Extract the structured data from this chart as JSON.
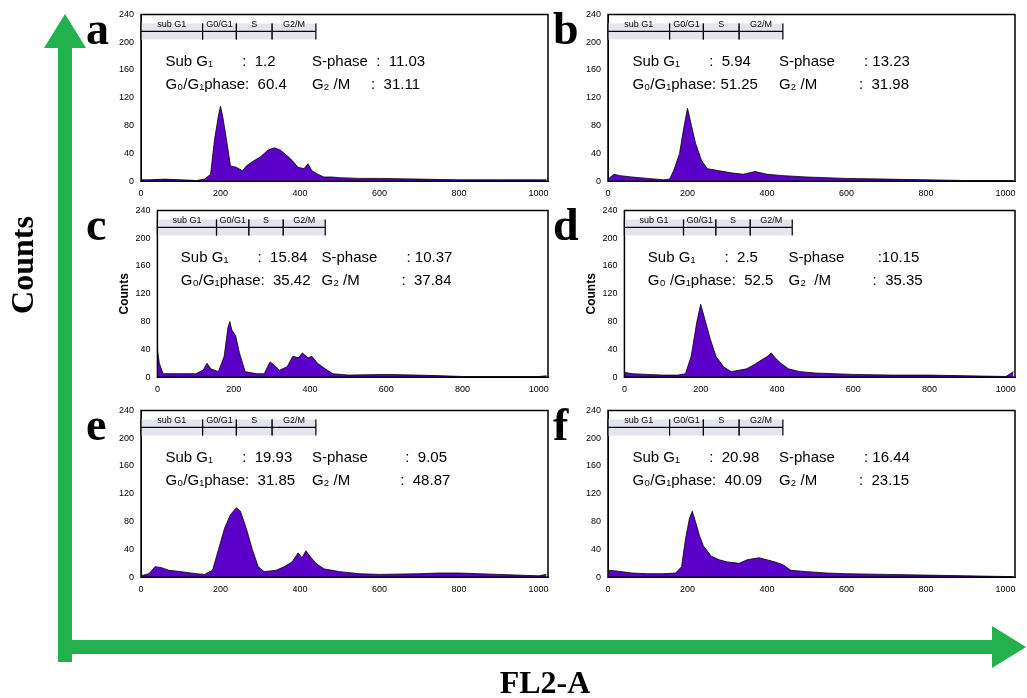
{
  "chart_data": [
    {
      "type": "area",
      "title": "a",
      "xlim": [
        0,
        1024
      ],
      "ylim": [
        0,
        240
      ],
      "xticks": [
        0,
        200,
        400,
        600,
        800,
        1000
      ],
      "yticks": [
        0,
        40,
        80,
        120,
        160,
        200,
        240
      ],
      "bands": [
        {
          "axis": "x",
          "from": 0,
          "to": 155,
          "label": "sub G1"
        },
        {
          "axis": "x",
          "from": 155,
          "to": 240,
          "label": "G0/G1"
        },
        {
          "axis": "x",
          "from": 240,
          "to": 330,
          "label": "S"
        },
        {
          "axis": "x",
          "from": 330,
          "to": 440,
          "label": "G2/M"
        }
      ],
      "annotations": [
        "Sub G₁       :  1.2",
        "S-phase  :  11.03",
        "G₀/G₁phase:  60.4",
        "G₂ /M     :  31.11"
      ],
      "series": [
        {
          "color": "#5a00c8",
          "x": [
            0,
            20,
            60,
            100,
            140,
            160,
            175,
            185,
            195,
            200,
            205,
            215,
            225,
            240,
            255,
            265,
            280,
            300,
            320,
            335,
            350,
            365,
            380,
            395,
            410,
            420,
            430,
            445,
            460,
            480,
            500,
            550,
            600,
            700,
            800,
            900,
            1000,
            1020
          ],
          "values": [
            2,
            2,
            3,
            2,
            1,
            3,
            10,
            60,
            95,
            108,
            95,
            60,
            22,
            20,
            15,
            22,
            28,
            35,
            45,
            48,
            45,
            38,
            30,
            20,
            18,
            25,
            15,
            10,
            6,
            6,
            5,
            4,
            4,
            3,
            2,
            2,
            2,
            2
          ]
        }
      ]
    },
    {
      "type": "area",
      "title": "b",
      "xlim": [
        0,
        1024
      ],
      "ylim": [
        0,
        240
      ],
      "xticks": [
        0,
        200,
        400,
        600,
        800,
        1000
      ],
      "yticks": [
        0,
        40,
        80,
        120,
        160,
        200,
        240
      ],
      "bands": [
        {
          "axis": "x",
          "from": 0,
          "to": 155,
          "label": "sub G1"
        },
        {
          "axis": "x",
          "from": 155,
          "to": 240,
          "label": "G0/G1"
        },
        {
          "axis": "x",
          "from": 240,
          "to": 330,
          "label": "S"
        },
        {
          "axis": "x",
          "from": 330,
          "to": 440,
          "label": "G2/M"
        }
      ],
      "annotations": [
        "Sub G₁       :  5.94",
        "S-phase       : 13.23",
        "G₀/G₁phase: 51.25",
        "G₂ /M          :  31.98"
      ],
      "series": [
        {
          "color": "#5a00c8",
          "x": [
            0,
            15,
            30,
            60,
            100,
            140,
            155,
            165,
            180,
            190,
            200,
            210,
            220,
            235,
            250,
            280,
            310,
            340,
            370,
            400,
            440,
            500,
            600,
            700,
            800,
            900,
            1000,
            1020
          ],
          "values": [
            3,
            10,
            8,
            6,
            4,
            2,
            3,
            15,
            40,
            75,
            105,
            80,
            55,
            30,
            18,
            15,
            12,
            10,
            14,
            10,
            8,
            6,
            4,
            3,
            2,
            1,
            1,
            1
          ]
        }
      ]
    },
    {
      "type": "area",
      "title": "c",
      "ylabel": "Counts",
      "xlim": [
        0,
        1024
      ],
      "ylim": [
        0,
        240
      ],
      "xticks": [
        0,
        200,
        400,
        600,
        800,
        1000
      ],
      "yticks": [
        0,
        40,
        80,
        120,
        160,
        200,
        240
      ],
      "bands": [
        {
          "axis": "x",
          "from": 0,
          "to": 155,
          "label": "sub G1"
        },
        {
          "axis": "x",
          "from": 155,
          "to": 240,
          "label": "G0/G1"
        },
        {
          "axis": "x",
          "from": 240,
          "to": 330,
          "label": "S"
        },
        {
          "axis": "x",
          "from": 330,
          "to": 440,
          "label": "G2/M"
        }
      ],
      "annotations": [
        "Sub G₁       :  15.84",
        "S-phase       : 10.37",
        "G₀/G₁phase:  35.42",
        "G₂ /M          :  37.84"
      ],
      "series": [
        {
          "color": "#5a00c8",
          "x": [
            0,
            5,
            15,
            50,
            100,
            120,
            130,
            140,
            160,
            175,
            185,
            190,
            195,
            205,
            215,
            230,
            260,
            280,
            295,
            305,
            320,
            340,
            355,
            370,
            380,
            395,
            405,
            420,
            440,
            460,
            500,
            600,
            680,
            750,
            800,
            1000,
            1020
          ],
          "values": [
            40,
            20,
            5,
            5,
            5,
            10,
            20,
            12,
            8,
            30,
            72,
            80,
            68,
            60,
            35,
            8,
            5,
            5,
            22,
            18,
            10,
            15,
            30,
            28,
            35,
            28,
            30,
            20,
            12,
            5,
            3,
            4,
            3,
            2,
            1,
            1,
            2
          ]
        }
      ]
    },
    {
      "type": "area",
      "title": "d",
      "ylabel": "Counts",
      "xlim": [
        0,
        1024
      ],
      "ylim": [
        0,
        240
      ],
      "xticks": [
        0,
        200,
        400,
        600,
        800,
        1000
      ],
      "yticks": [
        0,
        40,
        80,
        120,
        160,
        200,
        240
      ],
      "bands": [
        {
          "axis": "x",
          "from": 0,
          "to": 155,
          "label": "sub G1"
        },
        {
          "axis": "x",
          "from": 155,
          "to": 240,
          "label": "G0/G1"
        },
        {
          "axis": "x",
          "from": 240,
          "to": 330,
          "label": "S"
        },
        {
          "axis": "x",
          "from": 330,
          "to": 440,
          "label": "G2/M"
        }
      ],
      "annotations": [
        "Sub G₁       :  2.5",
        "S-phase        :10.15",
        "G₀ /G₁phase:  52.5",
        "G₂  /M          :  35.35"
      ],
      "series": [
        {
          "color": "#5a00c8",
          "x": [
            0,
            20,
            60,
            100,
            140,
            160,
            175,
            190,
            200,
            210,
            225,
            240,
            260,
            280,
            300,
            320,
            340,
            360,
            375,
            385,
            395,
            410,
            430,
            460,
            500,
            600,
            700,
            800,
            900,
            1000,
            1020
          ],
          "values": [
            7,
            5,
            4,
            3,
            3,
            5,
            30,
            80,
            105,
            85,
            55,
            30,
            15,
            8,
            10,
            12,
            18,
            25,
            30,
            35,
            28,
            20,
            12,
            8,
            6,
            4,
            3,
            3,
            2,
            1,
            8
          ]
        }
      ]
    },
    {
      "type": "area",
      "title": "e",
      "xlim": [
        0,
        1024
      ],
      "ylim": [
        0,
        240
      ],
      "xticks": [
        0,
        200,
        400,
        600,
        800,
        1000
      ],
      "yticks": [
        0,
        40,
        80,
        120,
        160,
        200,
        240
      ],
      "bands": [
        {
          "axis": "x",
          "from": 0,
          "to": 155,
          "label": "sub G1"
        },
        {
          "axis": "x",
          "from": 155,
          "to": 240,
          "label": "G0/G1"
        },
        {
          "axis": "x",
          "from": 240,
          "to": 330,
          "label": "S"
        },
        {
          "axis": "x",
          "from": 330,
          "to": 440,
          "label": "G2/M"
        }
      ],
      "annotations": [
        "Sub G₁       :  19.93",
        "S-phase         :  9.05",
        "G₀/G₁phase:  31.85",
        "G₂ /M            :  48.87"
      ],
      "series": [
        {
          "color": "#5a00c8",
          "x": [
            0,
            20,
            35,
            50,
            70,
            100,
            140,
            160,
            180,
            195,
            210,
            225,
            240,
            250,
            265,
            280,
            295,
            310,
            340,
            360,
            380,
            395,
            405,
            415,
            425,
            440,
            460,
            480,
            500,
            550,
            600,
            700,
            750,
            800,
            900,
            1000,
            1020
          ],
          "values": [
            2,
            5,
            15,
            14,
            10,
            8,
            5,
            4,
            10,
            40,
            70,
            90,
            100,
            95,
            70,
            40,
            15,
            8,
            10,
            15,
            22,
            35,
            28,
            38,
            30,
            20,
            12,
            10,
            8,
            5,
            4,
            5,
            6,
            6,
            4,
            2,
            4
          ]
        }
      ]
    },
    {
      "type": "area",
      "title": "f",
      "xlim": [
        0,
        1024
      ],
      "ylim": [
        0,
        240
      ],
      "xticks": [
        0,
        200,
        400,
        600,
        800,
        1000
      ],
      "yticks": [
        0,
        40,
        80,
        120,
        160,
        200,
        240
      ],
      "bands": [
        {
          "axis": "x",
          "from": 0,
          "to": 155,
          "label": "sub G1"
        },
        {
          "axis": "x",
          "from": 155,
          "to": 240,
          "label": "G0/G1"
        },
        {
          "axis": "x",
          "from": 240,
          "to": 330,
          "label": "S"
        },
        {
          "axis": "x",
          "from": 330,
          "to": 440,
          "label": "G2/M"
        }
      ],
      "annotations": [
        "Sub G₁       :  20.98",
        "S-phase       : 16.44",
        "G₀/G₁phase:  40.09",
        "G₂ /M          :  23.15"
      ],
      "series": [
        {
          "color": "#5a00c8",
          "x": [
            0,
            20,
            60,
            100,
            140,
            170,
            185,
            195,
            205,
            212,
            220,
            230,
            240,
            260,
            280,
            300,
            330,
            350,
            380,
            400,
            420,
            440,
            460,
            500,
            550,
            600,
            700,
            800,
            900,
            1000,
            1020
          ],
          "values": [
            10,
            9,
            6,
            5,
            5,
            6,
            15,
            55,
            85,
            95,
            80,
            60,
            45,
            30,
            25,
            22,
            20,
            25,
            28,
            25,
            22,
            18,
            10,
            8,
            6,
            5,
            4,
            3,
            2,
            1,
            1
          ]
        }
      ]
    },
    {
      "type": "other",
      "xlabel": "FL2-A",
      "ylabel": "Counts"
    }
  ]
}
